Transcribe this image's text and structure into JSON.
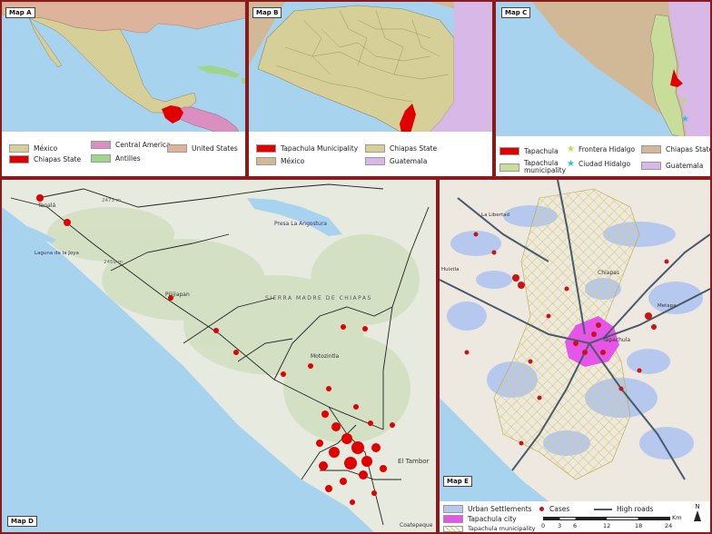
{
  "panels": {
    "a": {
      "label": "Map A",
      "legend": [
        "México",
        "Chiapas State",
        "Central America",
        "Antilles",
        "United States"
      ],
      "colors": {
        "mexico": "#d6cf98",
        "chiapas": "#e00000",
        "central_america": "#d98fc0",
        "antilles": "#9fd58a",
        "usa": "#ddb39b",
        "water": "#a8d3ef"
      }
    },
    "b": {
      "label": "Map B",
      "legend": [
        "Tapachula Municipality",
        "México",
        "Chiapas State",
        "Guatemala"
      ],
      "colors": {
        "tapachula": "#e00000",
        "mexico": "#d1b896",
        "chiapas": "#d6cf98",
        "guatemala": "#d7b8e6",
        "water": "#a8d3ef"
      }
    },
    "c": {
      "label": "Map C",
      "legend": [
        "Tapachula",
        "Tapachula municipality",
        "Frontera Hidalgo",
        "Ciudad Hidalgo",
        "Chiapas State",
        "Guatemala"
      ],
      "colors": {
        "tapachula": "#e00000",
        "municipality": "#c9dd9a",
        "frontera": "#b6e34c",
        "ciudad": "#38b8e6",
        "chiapas": "#d1b896",
        "guatemala": "#d7b8e6",
        "water": "#a8d3ef"
      }
    },
    "d": {
      "label": "Map D",
      "place_labels": [
        "Tonalá",
        "Pijijiapan",
        "Presa La Angostura",
        "Laguna de la Joya",
        "SIERRA MADRE DE CHIAPAS",
        "Motozintla",
        "El Tambor",
        "Coatepeque",
        "2473 m",
        "2459 m"
      ],
      "colors": {
        "terrain": "#e7eadf",
        "water": "#a8d3ef",
        "road": "#222",
        "case": "#e00000"
      }
    },
    "e": {
      "label": "Map E",
      "place_labels": [
        "Chiapas",
        "Tapachula",
        "Metapa",
        "La Libertad",
        "Huixtla"
      ],
      "legend": {
        "urban": "Urban Settlements",
        "city": "Tapachula city",
        "municipality": "Tapachula municipality",
        "cases": "Cases",
        "roads": "High roads"
      },
      "scale": {
        "ticks": [
          "0",
          "3",
          "6",
          "12",
          "18",
          "24"
        ],
        "unit": "Km"
      },
      "north": "N",
      "colors": {
        "urban": "#b7c8ef",
        "city": "#e455e8",
        "municipality_hatch": "#d8cc6a",
        "case": "#c81414",
        "road": "#4a5a6a",
        "land": "#ede9e0",
        "water": "#a8d3ef"
      }
    }
  }
}
